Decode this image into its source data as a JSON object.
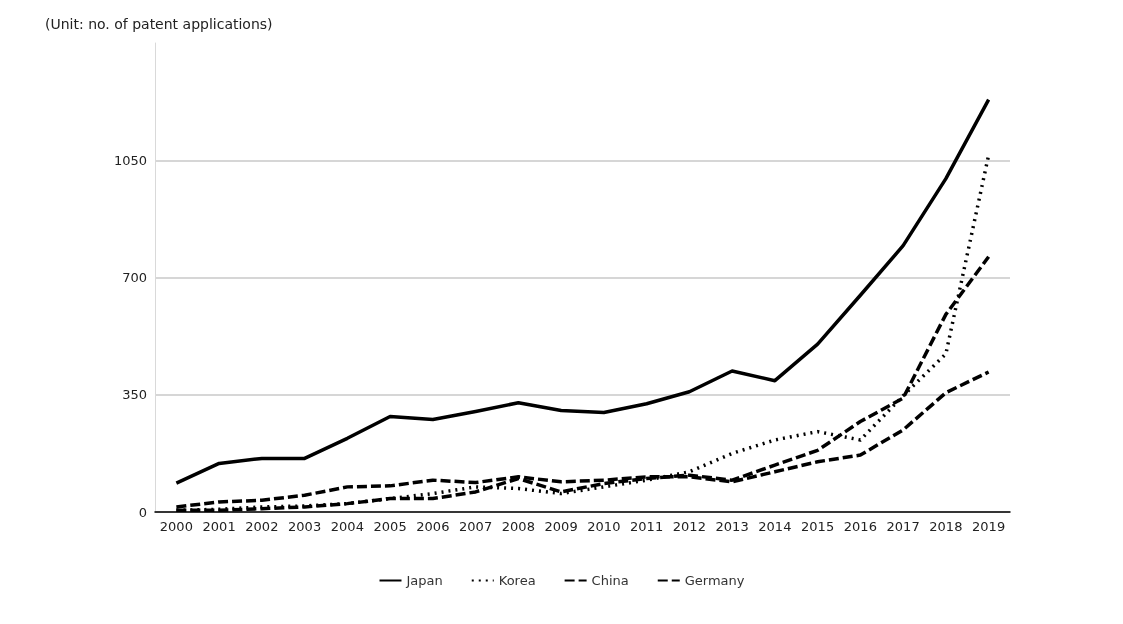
{
  "chart_data": {
    "type": "line",
    "ylabel": "(Unit: no. of patent applications)",
    "categories": [
      "2000",
      "2001",
      "2002",
      "2003",
      "2004",
      "2005",
      "2006",
      "2007",
      "2008",
      "2009",
      "2010",
      "2011",
      "2012",
      "2013",
      "2014",
      "2015",
      "2016",
      "2017",
      "2018",
      "2019"
    ],
    "series": [
      {
        "name": "Japan",
        "color": "#000000",
        "line_style": "solid",
        "values": [
          86,
          145,
          160,
          160,
          220,
          285,
          276,
          300,
          326,
          303,
          297,
          323,
          359,
          421,
          392,
          501,
          647,
          795,
          995,
          1231
        ]
      },
      {
        "name": "Korea",
        "color": "#000000",
        "line_style": "dotted",
        "values": [
          5,
          8,
          15,
          18,
          25,
          40,
          55,
          75,
          70,
          55,
          75,
          95,
          120,
          175,
          215,
          240,
          215,
          347,
          472,
          1065
        ]
      },
      {
        "name": "China",
        "color": "#000000",
        "line_style": "dashed",
        "values": [
          5,
          5,
          10,
          15,
          25,
          40,
          40,
          60,
          100,
          60,
          85,
          100,
          110,
          95,
          140,
          184,
          270,
          340,
          590,
          762
        ]
      },
      {
        "name": "Germany",
        "color": "#000000",
        "line_style": "dashed",
        "values": [
          15,
          30,
          35,
          50,
          75,
          78,
          95,
          88,
          105,
          90,
          95,
          105,
          105,
          90,
          120,
          150,
          170,
          245,
          356,
          418
        ]
      }
    ],
    "ylim": [
      0,
      1400
    ],
    "yticks": [
      0,
      350,
      700,
      1050
    ],
    "grid": "y",
    "legend": "bottom",
    "marker": "none"
  }
}
